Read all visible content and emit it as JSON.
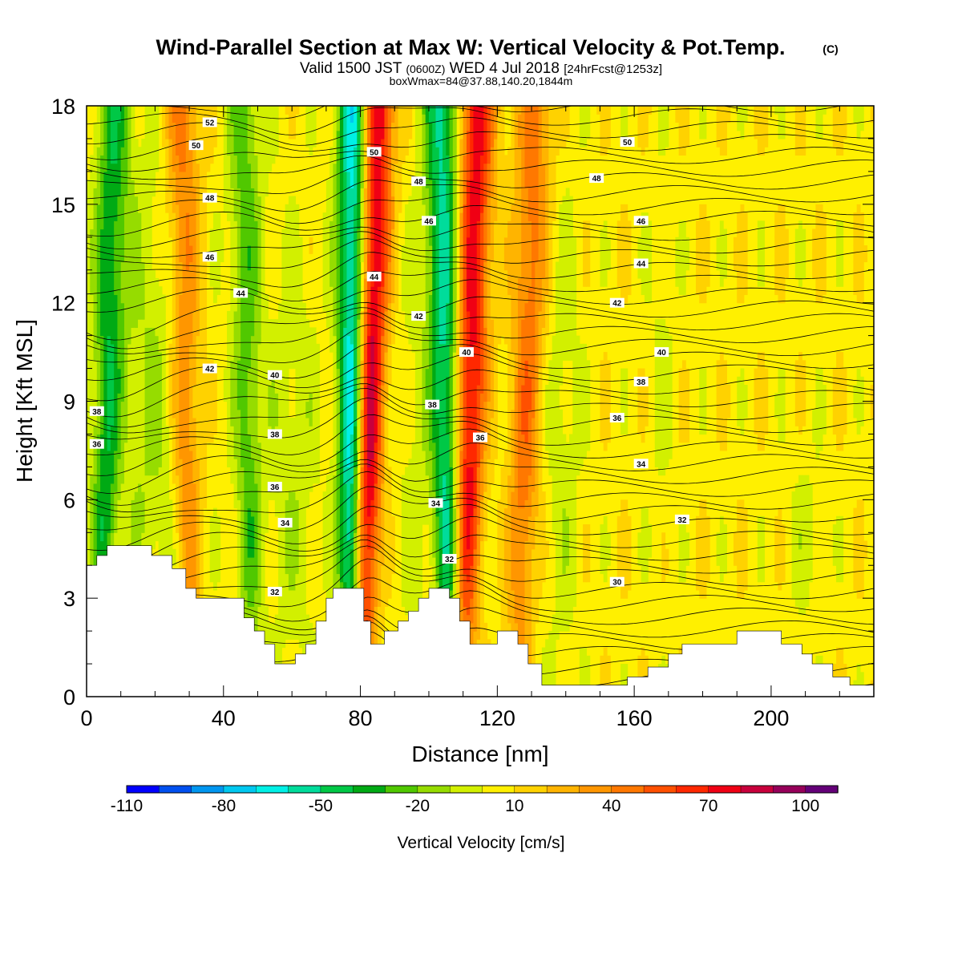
{
  "header": {
    "title": "Wind-Parallel Section at Max W: Vertical Velocity & Pot.Temp.",
    "copyright": "(C)",
    "valid_prefix": "Valid 1500 JST",
    "valid_utc": "(0600Z)",
    "valid_date": "WED 4 Jul 2018",
    "forecast_tag": "[24hrFcst@1253z]",
    "box_info": "boxWmax=84@37.88,140.20,1844m"
  },
  "chart_data": {
    "type": "heatmap",
    "xlabel": "Distance [nm]",
    "ylabel": "Height [Kft MSL]",
    "xlim": [
      0,
      230
    ],
    "ylim": [
      0,
      18
    ],
    "x_ticks": [
      0,
      40,
      80,
      120,
      160,
      200
    ],
    "y_ticks": [
      0,
      3,
      6,
      9,
      12,
      15,
      18
    ],
    "colorbar": {
      "label": "Vertical Velocity [cm/s]",
      "bounds": [
        -110,
        110
      ],
      "tick_labels": [
        -110,
        -80,
        -50,
        -20,
        10,
        40,
        70,
        100
      ],
      "colors": [
        "#0000ff",
        "#0050f0",
        "#0096f0",
        "#00c8f0",
        "#00f0e6",
        "#00dc9b",
        "#00c846",
        "#00aa14",
        "#50c800",
        "#96dc00",
        "#d2f000",
        "#fff000",
        "#ffd200",
        "#ffb400",
        "#ff9600",
        "#ff7800",
        "#ff5000",
        "#ff2800",
        "#f00014",
        "#c8003c",
        "#96005a",
        "#640078"
      ]
    },
    "updraft_bands": [
      {
        "x_bottom": 80,
        "x_top": 84,
        "peak": 100
      },
      {
        "x_bottom": 110,
        "x_top": 114,
        "peak": 70
      },
      {
        "x_bottom": 126,
        "x_top": 131,
        "peak": 40
      },
      {
        "x_bottom": 30,
        "x_top": 28,
        "peak": 40
      }
    ],
    "downdraft_bands": [
      {
        "x_bottom": 77,
        "x_top": 79,
        "peak": -100
      },
      {
        "x_bottom": 106,
        "x_top": 104,
        "peak": -60
      },
      {
        "x_bottom": 4,
        "x_top": 8,
        "peak": -40
      },
      {
        "x_bottom": 48,
        "x_top": 46,
        "peak": -30
      }
    ],
    "theta_contours": [
      {
        "label": "52",
        "lx": 36,
        "ly": 17.5
      },
      {
        "label": "50",
        "lx": 32,
        "ly": 16.8
      },
      {
        "label": "50",
        "lx": 84,
        "ly": 16.6
      },
      {
        "label": "50",
        "lx": 158,
        "ly": 16.9
      },
      {
        "label": "48",
        "lx": 36,
        "ly": 15.2
      },
      {
        "label": "48",
        "lx": 97,
        "ly": 15.7
      },
      {
        "label": "48",
        "lx": 149,
        "ly": 15.8
      },
      {
        "label": "46",
        "lx": 36,
        "ly": 13.4
      },
      {
        "label": "46",
        "lx": 100,
        "ly": 14.5
      },
      {
        "label": "46",
        "lx": 162,
        "ly": 14.5
      },
      {
        "label": "44",
        "lx": 45,
        "ly": 12.3
      },
      {
        "label": "44",
        "lx": 84,
        "ly": 12.8
      },
      {
        "label": "44",
        "lx": 162,
        "ly": 13.2
      },
      {
        "label": "42",
        "lx": 36,
        "ly": 10.0
      },
      {
        "label": "42",
        "lx": 97,
        "ly": 11.6
      },
      {
        "label": "42",
        "lx": 155,
        "ly": 12.0
      },
      {
        "label": "40",
        "lx": 55,
        "ly": 9.8
      },
      {
        "label": "40",
        "lx": 111,
        "ly": 10.5
      },
      {
        "label": "40",
        "lx": 168,
        "ly": 10.5
      },
      {
        "label": "38",
        "lx": 3,
        "ly": 8.7
      },
      {
        "label": "38",
        "lx": 55,
        "ly": 8.0
      },
      {
        "label": "38",
        "lx": 101,
        "ly": 8.9
      },
      {
        "label": "38",
        "lx": 162,
        "ly": 9.6
      },
      {
        "label": "36",
        "lx": 3,
        "ly": 7.7
      },
      {
        "label": "36",
        "lx": 55,
        "ly": 6.4
      },
      {
        "label": "36",
        "lx": 115,
        "ly": 7.9
      },
      {
        "label": "36",
        "lx": 155,
        "ly": 8.5
      },
      {
        "label": "34",
        "lx": 58,
        "ly": 5.3
      },
      {
        "label": "34",
        "lx": 102,
        "ly": 5.9
      },
      {
        "label": "34",
        "lx": 162,
        "ly": 7.1
      },
      {
        "label": "32",
        "lx": 55,
        "ly": 3.2
      },
      {
        "label": "32",
        "lx": 106,
        "ly": 4.2
      },
      {
        "label": "32",
        "lx": 174,
        "ly": 5.4
      },
      {
        "label": "30",
        "lx": 155,
        "ly": 3.5
      }
    ],
    "terrain": [
      [
        0,
        4.0
      ],
      [
        3,
        4.0
      ],
      [
        3,
        4.3
      ],
      [
        6,
        4.3
      ],
      [
        6,
        4.6
      ],
      [
        19,
        4.6
      ],
      [
        19,
        4.3
      ],
      [
        25,
        4.3
      ],
      [
        25,
        3.9
      ],
      [
        29,
        3.9
      ],
      [
        29,
        3.3
      ],
      [
        32,
        3.3
      ],
      [
        32,
        3.0
      ],
      [
        46,
        3.0
      ],
      [
        46,
        2.4
      ],
      [
        49,
        2.4
      ],
      [
        49,
        2.0
      ],
      [
        52,
        2.0
      ],
      [
        52,
        1.6
      ],
      [
        55,
        1.6
      ],
      [
        55,
        1.0
      ],
      [
        61,
        1.0
      ],
      [
        61,
        1.3
      ],
      [
        64,
        1.3
      ],
      [
        64,
        1.6
      ],
      [
        67,
        1.6
      ],
      [
        67,
        2.3
      ],
      [
        70,
        2.3
      ],
      [
        70,
        3.0
      ],
      [
        72,
        3.0
      ],
      [
        72,
        3.3
      ],
      [
        81,
        3.3
      ],
      [
        81,
        2.3
      ],
      [
        83,
        2.3
      ],
      [
        83,
        1.6
      ],
      [
        87,
        1.6
      ],
      [
        87,
        2.0
      ],
      [
        91,
        2.0
      ],
      [
        91,
        2.3
      ],
      [
        94,
        2.3
      ],
      [
        94,
        2.6
      ],
      [
        97,
        2.6
      ],
      [
        97,
        3.0
      ],
      [
        100,
        3.0
      ],
      [
        100,
        3.3
      ],
      [
        106,
        3.3
      ],
      [
        106,
        3.0
      ],
      [
        109,
        3.0
      ],
      [
        109,
        2.3
      ],
      [
        112,
        2.3
      ],
      [
        112,
        1.6
      ],
      [
        120,
        1.6
      ],
      [
        120,
        2.0
      ],
      [
        126,
        2.0
      ],
      [
        126,
        1.6
      ],
      [
        129,
        1.6
      ],
      [
        129,
        1.0
      ],
      [
        133,
        1.0
      ],
      [
        133,
        0.35
      ],
      [
        158,
        0.35
      ],
      [
        158,
        0.6
      ],
      [
        164,
        0.6
      ],
      [
        164,
        0.9
      ],
      [
        170,
        0.9
      ],
      [
        170,
        1.3
      ],
      [
        174,
        1.3
      ],
      [
        174,
        1.6
      ],
      [
        190,
        1.6
      ],
      [
        190,
        2.0
      ],
      [
        203,
        2.0
      ],
      [
        203,
        1.6
      ],
      [
        209,
        1.6
      ],
      [
        209,
        1.3
      ],
      [
        212,
        1.3
      ],
      [
        212,
        1.0
      ],
      [
        218,
        1.0
      ],
      [
        218,
        0.6
      ],
      [
        223,
        0.6
      ],
      [
        223,
        0.35
      ],
      [
        230,
        0.35
      ]
    ]
  }
}
